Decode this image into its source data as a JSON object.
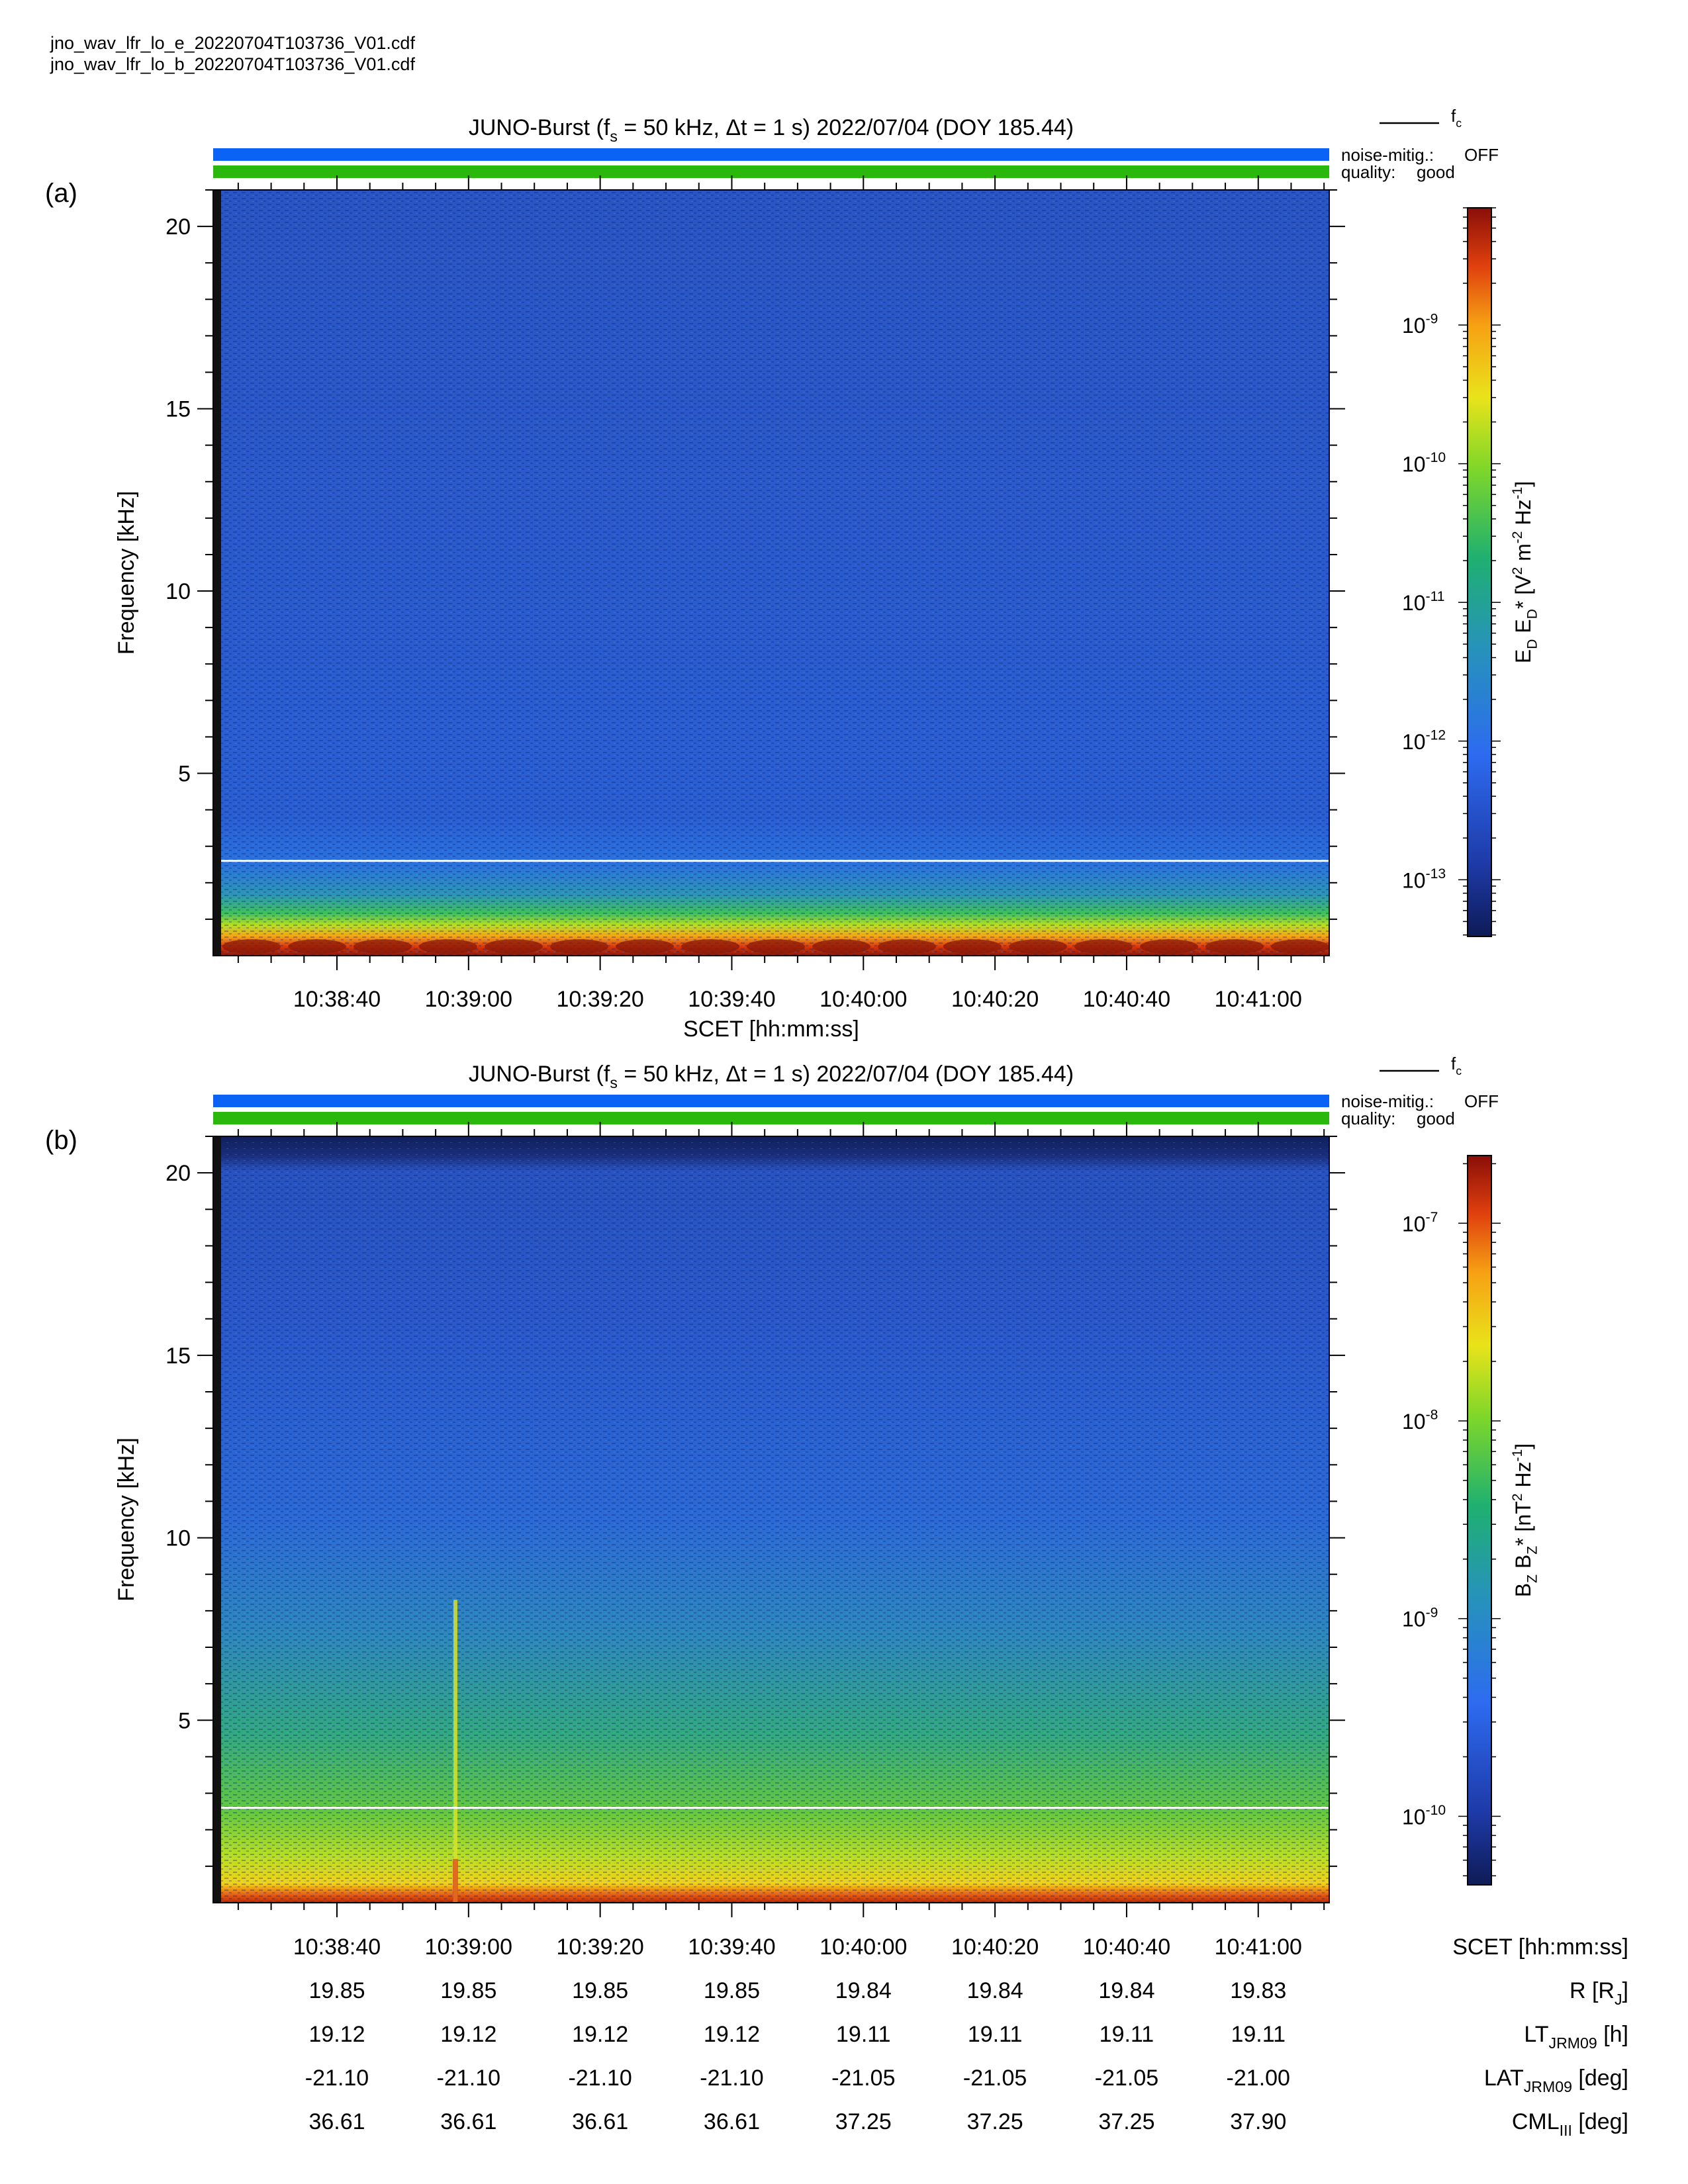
{
  "files": [
    "jno_wav_lfr_lo_e_20220704T103736_V01.cdf",
    "jno_wav_lfr_lo_b_20220704T103736_V01.cdf"
  ],
  "colors": {
    "noise_bar": "#0a63f5",
    "quality_bar": "#2ab80c",
    "noise_text": "#1a66e0",
    "quality_text": "#39b517",
    "fc_line": "#ffffff"
  },
  "chart_data": [
    {
      "type": "heatmap",
      "panel_label": "(a)",
      "title": {
        "main": "JUNO-Burst (f",
        "sub": "s",
        "rest": " = 50 kHz, Δt = 1 s)  2022/07/04 (DOY 185.44)"
      },
      "legend_fc": {
        "main": "f",
        "sub": "c"
      },
      "noise_mitig_label": "noise-mitig.:",
      "noise_mitig_value": "OFF",
      "quality_label": "quality:",
      "quality_value": "good",
      "ylabel": "Frequency [kHz]",
      "xlabel": "SCET [hh:mm:ss]",
      "ylim": [
        0,
        21
      ],
      "yticks": [
        5,
        10,
        15,
        20
      ],
      "ytick_labels": [
        "5",
        "10",
        "15",
        "20"
      ],
      "xlim_seconds_after": [
        "10:38:23",
        "10:41:13"
      ],
      "xticks": [
        "10:38:40",
        "10:39:00",
        "10:39:20",
        "10:39:40",
        "10:40:00",
        "10:40:20",
        "10:40:40",
        "10:41:00"
      ],
      "fc_khz": 2.6,
      "colorbar": {
        "scale": "log",
        "range": [
          3.9e-14,
          7e-09
        ],
        "ticks": [
          1e-13,
          1e-12,
          1e-11,
          1e-10,
          1e-09
        ],
        "tick_labels": [
          {
            "base": "10",
            "exp": "-13"
          },
          {
            "base": "10",
            "exp": "-12"
          },
          {
            "base": "10",
            "exp": "-11"
          },
          {
            "base": "10",
            "exp": "-10"
          },
          {
            "base": "10",
            "exp": "-9"
          }
        ],
        "label": "E_D E_D* [V^2 m^-2 Hz^-1]"
      }
    },
    {
      "type": "heatmap",
      "panel_label": "(b)",
      "title": {
        "main": "JUNO-Burst (f",
        "sub": "s",
        "rest": " = 50 kHz, Δt = 1 s)  2022/07/04 (DOY 185.44)"
      },
      "legend_fc": {
        "main": "f",
        "sub": "c"
      },
      "noise_mitig_label": "noise-mitig.:",
      "noise_mitig_value": "OFF",
      "quality_label": "quality:",
      "quality_value": "good",
      "ylabel": "Frequency [kHz]",
      "ylim": [
        0,
        21
      ],
      "yticks": [
        5,
        10,
        15,
        20
      ],
      "ytick_labels": [
        "5",
        "10",
        "15",
        "20"
      ],
      "xticks": [
        "10:38:40",
        "10:39:00",
        "10:39:20",
        "10:39:40",
        "10:40:00",
        "10:40:20",
        "10:40:40",
        "10:41:00"
      ],
      "fc_khz": 2.6,
      "burst_time": "10:38:58",
      "colorbar": {
        "scale": "log",
        "range": [
          4.5e-11,
          2.2e-07
        ],
        "ticks": [
          1e-10,
          1e-09,
          1e-08,
          1e-07
        ],
        "tick_labels": [
          {
            "base": "10",
            "exp": "-10"
          },
          {
            "base": "10",
            "exp": "-9"
          },
          {
            "base": "10",
            "exp": "-8"
          },
          {
            "base": "10",
            "exp": "-7"
          }
        ],
        "label": "B_Z B_Z* [nT^2 Hz^-1]"
      },
      "ephemeris": {
        "rows": [
          {
            "label": {
              "main": "SCET [hh:mm:ss]",
              "sub": "",
              "rest": ""
            },
            "values": [
              "10:38:40",
              "10:39:00",
              "10:39:20",
              "10:39:40",
              "10:40:00",
              "10:40:20",
              "10:40:40",
              "10:41:00"
            ]
          },
          {
            "label": {
              "main": "R [R",
              "sub": "J",
              "rest": "]"
            },
            "values": [
              "19.85",
              "19.85",
              "19.85",
              "19.85",
              "19.84",
              "19.84",
              "19.84",
              "19.83"
            ]
          },
          {
            "label": {
              "main": "LT",
              "sub": "JRM09",
              "rest": " [h]"
            },
            "values": [
              "19.12",
              "19.12",
              "19.12",
              "19.12",
              "19.11",
              "19.11",
              "19.11",
              "19.11"
            ]
          },
          {
            "label": {
              "main": "LAT",
              "sub": "JRM09",
              "rest": " [deg]"
            },
            "values": [
              "-21.10",
              "-21.10",
              "-21.10",
              "-21.10",
              "-21.05",
              "-21.05",
              "-21.05",
              "-21.00"
            ]
          },
          {
            "label": {
              "main": "CML",
              "sub": "III",
              "rest": " [deg]"
            },
            "values": [
              "36.61",
              "36.61",
              "36.61",
              "36.61",
              "37.25",
              "37.25",
              "37.25",
              "37.90"
            ]
          }
        ]
      }
    }
  ]
}
